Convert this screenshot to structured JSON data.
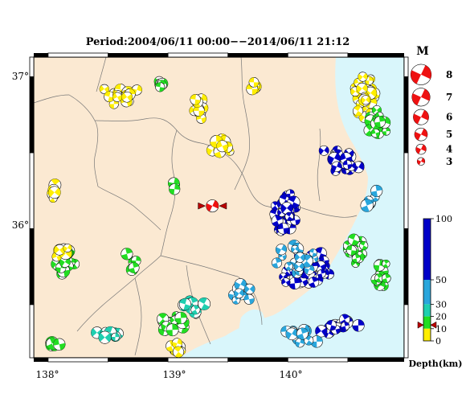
{
  "title": "Period:2004/06/11 00:00−−2014/06/11 21:12",
  "axes": {
    "lon_labels": [
      "138°",
      "139°",
      "140°"
    ],
    "lat_labels": [
      "37°",
      "36°"
    ]
  },
  "magnitude_legend": {
    "title": "M",
    "items": [
      {
        "label": "8",
        "mag": 8
      },
      {
        "label": "7",
        "mag": 7
      },
      {
        "label": "6",
        "mag": 6
      },
      {
        "label": "5",
        "mag": 5
      },
      {
        "label": "4",
        "mag": 4
      },
      {
        "label": "3",
        "mag": 3
      }
    ]
  },
  "depth_legend": {
    "title": "Depth(km)",
    "ticks": [
      "100",
      "50",
      "30",
      "20",
      "10",
      "0"
    ],
    "bands": [
      {
        "from": 50,
        "to": 100,
        "color": "#0000c8"
      },
      {
        "from": 30,
        "to": 50,
        "color": "#2aa6dc"
      },
      {
        "from": 20,
        "to": 30,
        "color": "#1fcfb0"
      },
      {
        "from": 10,
        "to": 20,
        "color": "#22dd22"
      },
      {
        "from": 0,
        "to": 10,
        "color": "#ffee00"
      }
    ],
    "pointer_depth": 13
  },
  "colors": {
    "land": "#fbe9d2",
    "sea": "#d9f6fb",
    "highlight": "#ee1111"
  },
  "highlight_event": {
    "lon": 139.37,
    "lat": 36.15,
    "mag": 4.8
  }
}
